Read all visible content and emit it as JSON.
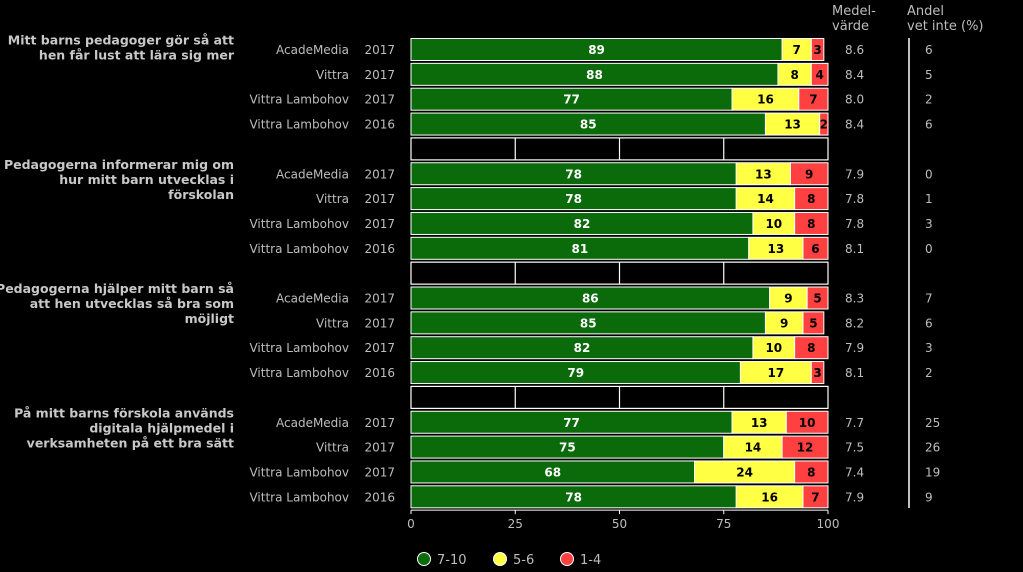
{
  "chart_data": {
    "type": "bar",
    "orientation": "horizontal",
    "stacked": true,
    "colors": {
      "7-10": "#0b6b0b",
      "5-6": "#ffff44",
      "1-4": "#ff4040"
    },
    "column_headers": {
      "mean": "Medel-\nvärde",
      "dontknow": "Andel\nvet inte (%)"
    },
    "xticks": [
      0,
      25,
      50,
      75,
      100
    ],
    "xlim": [
      0,
      100
    ],
    "legend": [
      {
        "name": "7-10",
        "color": "#0b6b0b"
      },
      {
        "name": "5-6",
        "color": "#ffff44"
      },
      {
        "name": "1-4",
        "color": "#ff4040"
      }
    ],
    "legend_position": "bottom",
    "groups": [
      {
        "question": "Mitt barns pedagoger gör så att\nhen får lust att lära sig mer",
        "rows": [
          {
            "label": "AcadeMedia",
            "year": "2017",
            "values": [
              89,
              7,
              3
            ],
            "mean": "8.6",
            "dontknow": "6"
          },
          {
            "label": "Vittra",
            "year": "2017",
            "values": [
              88,
              8,
              4
            ],
            "mean": "8.4",
            "dontknow": "5"
          },
          {
            "label": "Vittra Lambohov",
            "year": "2017",
            "values": [
              77,
              16,
              7
            ],
            "mean": "8.0",
            "dontknow": "2"
          },
          {
            "label": "Vittra Lambohov",
            "year": "2016",
            "values": [
              85,
              13,
              2
            ],
            "mean": "8.4",
            "dontknow": "6"
          }
        ]
      },
      {
        "question": "Pedagogerna informerar mig om\nhur mitt barn utvecklas i\nförskolan",
        "rows": [
          {
            "label": "AcadeMedia",
            "year": "2017",
            "values": [
              78,
              13,
              9
            ],
            "mean": "7.9",
            "dontknow": "0"
          },
          {
            "label": "Vittra",
            "year": "2017",
            "values": [
              78,
              14,
              8
            ],
            "mean": "7.8",
            "dontknow": "1"
          },
          {
            "label": "Vittra Lambohov",
            "year": "2017",
            "values": [
              82,
              10,
              8
            ],
            "mean": "7.8",
            "dontknow": "3"
          },
          {
            "label": "Vittra Lambohov",
            "year": "2016",
            "values": [
              81,
              13,
              6
            ],
            "mean": "8.1",
            "dontknow": "0"
          }
        ]
      },
      {
        "question": "Pedagogerna hjälper mitt barn så\natt hen utvecklas så bra som\nmöjligt",
        "rows": [
          {
            "label": "AcadeMedia",
            "year": "2017",
            "values": [
              86,
              9,
              5
            ],
            "mean": "8.3",
            "dontknow": "7"
          },
          {
            "label": "Vittra",
            "year": "2017",
            "values": [
              85,
              9,
              5
            ],
            "mean": "8.2",
            "dontknow": "6"
          },
          {
            "label": "Vittra Lambohov",
            "year": "2017",
            "values": [
              82,
              10,
              8
            ],
            "mean": "7.9",
            "dontknow": "3"
          },
          {
            "label": "Vittra Lambohov",
            "year": "2016",
            "values": [
              79,
              17,
              3
            ],
            "mean": "8.1",
            "dontknow": "2"
          }
        ]
      },
      {
        "question": "På mitt barns förskola används\ndigitala hjälpmedel i\nverksamheten på ett bra sätt",
        "rows": [
          {
            "label": "AcadeMedia",
            "year": "2017",
            "values": [
              77,
              13,
              10
            ],
            "mean": "7.7",
            "dontknow": "25"
          },
          {
            "label": "Vittra",
            "year": "2017",
            "values": [
              75,
              14,
              12
            ],
            "mean": "7.5",
            "dontknow": "26"
          },
          {
            "label": "Vittra Lambohov",
            "year": "2017",
            "values": [
              68,
              24,
              8
            ],
            "mean": "7.4",
            "dontknow": "19"
          },
          {
            "label": "Vittra Lambohov",
            "year": "2016",
            "values": [
              78,
              16,
              7
            ],
            "mean": "7.9",
            "dontknow": "9"
          }
        ]
      }
    ]
  }
}
